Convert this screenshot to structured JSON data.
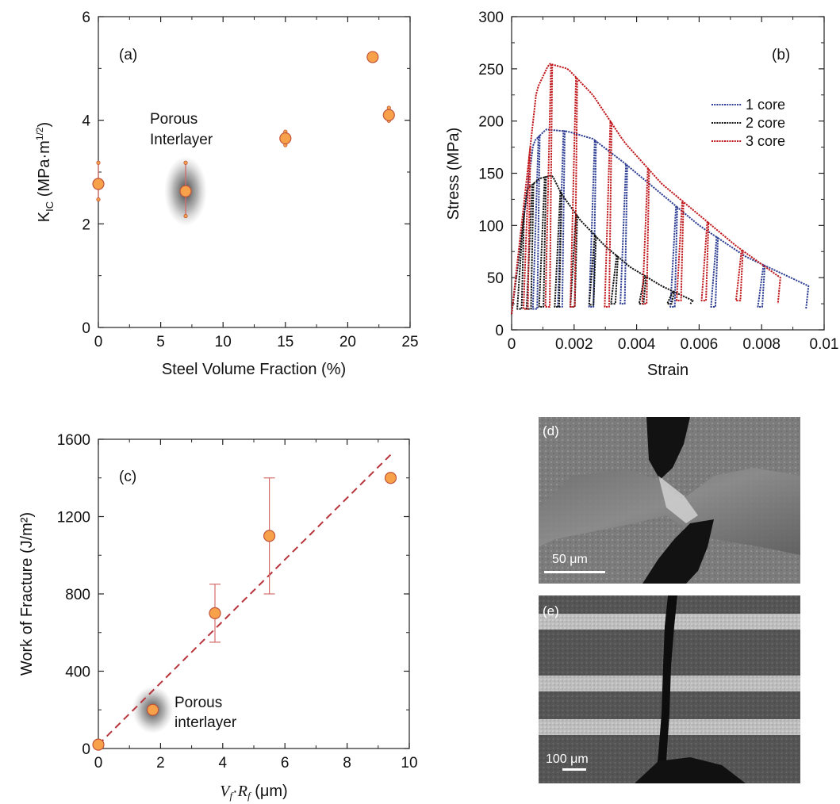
{
  "chart_data": [
    {
      "panel": "(a)",
      "type": "scatter",
      "xlabel": "Steel Volume Fraction (%)",
      "ylabel_main": "K",
      "ylabel_sub": "IC",
      "ylabel_unit": " (MPa·m",
      "ylabel_sup": "1/2",
      "ylabel_close": ")",
      "xlim": [
        0,
        25
      ],
      "ylim": [
        0,
        6
      ],
      "xticks": [
        0,
        5,
        10,
        15,
        20,
        25
      ],
      "yticks": [
        0,
        2,
        4,
        6
      ],
      "points": [
        {
          "x": 0,
          "y": 2.77,
          "ylo": 2.47,
          "yhi": 3.18
        },
        {
          "x": 7,
          "y": 2.63,
          "ylo": 2.15,
          "yhi": 3.18
        },
        {
          "x": 15,
          "y": 3.65,
          "ylo": 3.52,
          "yhi": 3.78
        },
        {
          "x": 22,
          "y": 5.22,
          "ylo": 5.22,
          "yhi": 5.22
        },
        {
          "x": 23.3,
          "y": 4.1,
          "ylo": 3.99,
          "yhi": 4.24
        }
      ],
      "annotation_line1": "Porous",
      "annotation_line2": "Interlayer",
      "highlight": {
        "x": 7,
        "y": 2.63
      }
    },
    {
      "panel": "(b)",
      "type": "line",
      "xlabel": "Strain",
      "ylabel": "Stress (MPa)",
      "xlim": [
        0,
        0.01
      ],
      "ylim": [
        0,
        300
      ],
      "xticks": [
        "0",
        "0.002",
        "0.004",
        "0.006",
        "0.008",
        "0.01"
      ],
      "xtick_values": [
        0,
        0.002,
        0.004,
        0.006,
        0.008,
        0.01
      ],
      "yticks": [
        0,
        50,
        100,
        150,
        200,
        250,
        300
      ],
      "legend_position": "right",
      "series": [
        {
          "name": "1 core",
          "color": "#2f3f94",
          "x": [
            0,
            0.0007,
            0.0011,
            0.0018,
            0.0026,
            0.0036,
            0.0048,
            0.006,
            0.0075,
            0.0095
          ],
          "y": [
            15,
            180,
            192,
            190,
            183,
            160,
            130,
            100,
            70,
            42
          ],
          "unload_at": [
            0.0009,
            0.0017,
            0.0027,
            0.0037,
            0.0053,
            0.0066,
            0.0081,
            0.0095
          ],
          "unload_to": [
            20,
            22,
            22,
            25,
            22,
            22,
            22,
            20
          ]
        },
        {
          "name": "2 core",
          "color": "#111111",
          "x": [
            0,
            0.0005,
            0.0009,
            0.0013,
            0.0016,
            0.0022,
            0.003,
            0.0038,
            0.0048,
            0.0058
          ],
          "y": [
            15,
            135,
            145,
            148,
            130,
            105,
            80,
            60,
            42,
            28
          ],
          "unload_at": [
            0.0004,
            0.0007,
            0.0011,
            0.0016,
            0.0021,
            0.0027,
            0.0034,
            0.0043,
            0.0052,
            0.0058
          ],
          "unload_to": [
            20,
            20,
            22,
            22,
            22,
            24,
            25,
            25,
            25,
            25
          ]
        },
        {
          "name": "3 core",
          "color": "#c0181c",
          "x": [
            0,
            0.0008,
            0.0012,
            0.0018,
            0.0026,
            0.0036,
            0.0048,
            0.006,
            0.0072,
            0.0086
          ],
          "y": [
            15,
            230,
            255,
            250,
            225,
            180,
            140,
            110,
            80,
            50
          ],
          "unload_at": [
            0.0006,
            0.0013,
            0.0021,
            0.0032,
            0.0044,
            0.0055,
            0.0063,
            0.0074,
            0.0086
          ],
          "unload_to": [
            20,
            22,
            22,
            22,
            25,
            28,
            28,
            28,
            25
          ]
        }
      ]
    },
    {
      "panel": "(c)",
      "type": "scatter",
      "xlabel_v": "V",
      "xlabel_vsub": "f",
      "xlabel_colon": "·",
      "xlabel_r": "R",
      "xlabel_rsub": "f",
      "xlabel_unit": " (μm)",
      "ylabel": "Work of Fracture (J/m²)",
      "xlim": [
        0,
        10
      ],
      "ylim": [
        0,
        1600
      ],
      "xticks": [
        0,
        2,
        4,
        6,
        8,
        10
      ],
      "yticks": [
        0,
        400,
        800,
        1200,
        1600
      ],
      "points": [
        {
          "x": 0,
          "y": 20,
          "ylo": 20,
          "yhi": 20
        },
        {
          "x": 1.75,
          "y": 200,
          "ylo": 200,
          "yhi": 200
        },
        {
          "x": 3.75,
          "y": 700,
          "ylo": 550,
          "yhi": 850
        },
        {
          "x": 5.5,
          "y": 1100,
          "ylo": 800,
          "yhi": 1400
        },
        {
          "x": 9.4,
          "y": 1400,
          "ylo": 1400,
          "yhi": 1400
        }
      ],
      "fit_line": {
        "x": [
          0,
          9.4
        ],
        "y": [
          20,
          1520
        ]
      },
      "annotation_line1": "Porous",
      "annotation_line2": "interlayer",
      "highlight": {
        "x": 1.75,
        "y": 200
      }
    }
  ],
  "images": {
    "d": {
      "label": "(d)",
      "scale": "50 μm"
    },
    "e": {
      "label": "(e)",
      "scale": "100 μm"
    }
  },
  "colors": {
    "marker_fill": "#f7a24b",
    "marker_edge": "#c2553a",
    "errorbar": "#d46a6a",
    "fit_line": "#b8343c"
  }
}
